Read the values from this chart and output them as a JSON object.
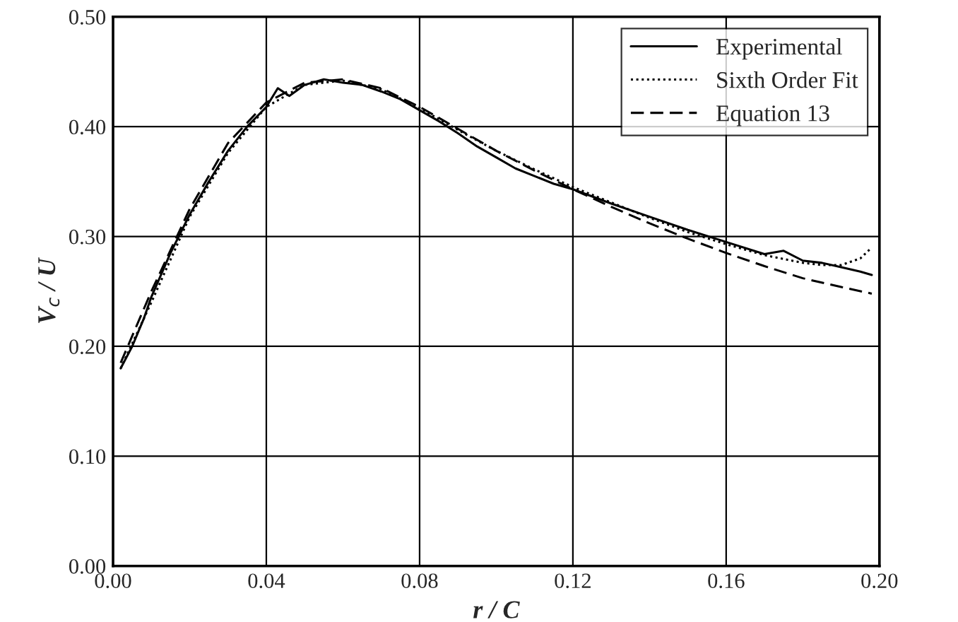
{
  "chart_data": {
    "type": "line",
    "xlabel": "r / C",
    "ylabel": "V$_{c}$ / U",
    "xlim": [
      0,
      0.2
    ],
    "ylim": [
      0,
      0.5
    ],
    "xticks": [
      {
        "value": 0,
        "label": "0.00"
      },
      {
        "value": 0.04,
        "label": "0.04"
      },
      {
        "value": 0.08,
        "label": "0.08"
      },
      {
        "value": 0.12,
        "label": "0.12"
      },
      {
        "value": 0.16,
        "label": "0.16"
      },
      {
        "value": 0.2,
        "label": "0.20"
      }
    ],
    "yticks": [
      {
        "value": 0,
        "label": "0.00"
      },
      {
        "value": 0.1,
        "label": "0.10"
      },
      {
        "value": 0.2,
        "label": "0.20"
      },
      {
        "value": 0.3,
        "label": "0.30"
      },
      {
        "value": 0.4,
        "label": "0.40"
      },
      {
        "value": 0.5,
        "label": "0.50"
      }
    ],
    "grid": true,
    "legend": "top right",
    "series": [
      {
        "name": "Experimental",
        "color": "#000000",
        "line_style": "solid",
        "x": [
          0.002,
          0.005,
          0.008,
          0.01,
          0.015,
          0.02,
          0.025,
          0.03,
          0.035,
          0.04,
          0.043,
          0.046,
          0.05,
          0.055,
          0.06,
          0.065,
          0.07,
          0.075,
          0.08,
          0.085,
          0.09,
          0.095,
          0.1,
          0.105,
          0.11,
          0.115,
          0.12,
          0.13,
          0.14,
          0.15,
          0.16,
          0.17,
          0.175,
          0.18,
          0.185,
          0.19,
          0.195,
          0.198
        ],
        "values": [
          0.18,
          0.2,
          0.225,
          0.245,
          0.285,
          0.32,
          0.35,
          0.378,
          0.4,
          0.418,
          0.435,
          0.428,
          0.438,
          0.443,
          0.44,
          0.438,
          0.432,
          0.425,
          0.415,
          0.405,
          0.394,
          0.382,
          0.372,
          0.362,
          0.355,
          0.348,
          0.343,
          0.33,
          0.318,
          0.306,
          0.295,
          0.284,
          0.287,
          0.278,
          0.276,
          0.272,
          0.268,
          0.265
        ]
      },
      {
        "name": "Sixth Order Fit",
        "color": "#000000",
        "line_style": "dotted",
        "x": [
          0.002,
          0.01,
          0.02,
          0.03,
          0.04,
          0.05,
          0.06,
          0.07,
          0.08,
          0.09,
          0.1,
          0.11,
          0.12,
          0.13,
          0.14,
          0.15,
          0.16,
          0.17,
          0.18,
          0.185,
          0.19,
          0.195,
          0.198
        ],
        "values": [
          0.18,
          0.24,
          0.318,
          0.376,
          0.418,
          0.438,
          0.442,
          0.434,
          0.417,
          0.397,
          0.378,
          0.361,
          0.345,
          0.331,
          0.317,
          0.304,
          0.293,
          0.283,
          0.276,
          0.274,
          0.274,
          0.28,
          0.29
        ]
      },
      {
        "name": "Equation 13",
        "color": "#000000",
        "line_style": "dashed",
        "x": [
          0.002,
          0.01,
          0.02,
          0.03,
          0.04,
          0.05,
          0.06,
          0.07,
          0.08,
          0.09,
          0.1,
          0.11,
          0.12,
          0.13,
          0.14,
          0.15,
          0.16,
          0.17,
          0.18,
          0.19,
          0.198
        ],
        "values": [
          0.185,
          0.25,
          0.325,
          0.385,
          0.422,
          0.44,
          0.443,
          0.435,
          0.418,
          0.398,
          0.378,
          0.36,
          0.343,
          0.327,
          0.312,
          0.298,
          0.285,
          0.273,
          0.262,
          0.254,
          0.248
        ]
      }
    ]
  }
}
